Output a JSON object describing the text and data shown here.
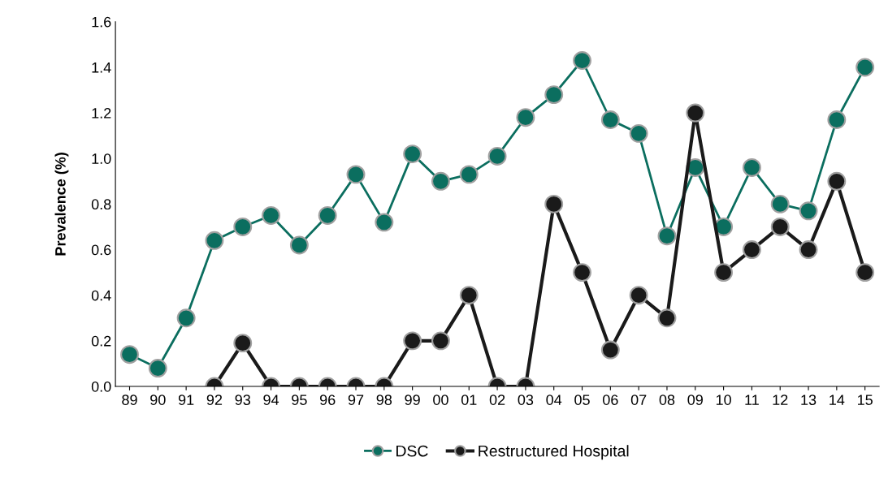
{
  "chart_data": {
    "type": "line",
    "ylabel": "Prevalence (%)",
    "categories": [
      "89",
      "90",
      "91",
      "92",
      "93",
      "94",
      "95",
      "96",
      "97",
      "98",
      "99",
      "00",
      "01",
      "02",
      "03",
      "04",
      "05",
      "06",
      "07",
      "08",
      "09",
      "10",
      "11",
      "12",
      "13",
      "14",
      "15"
    ],
    "series": [
      {
        "name": "DSC",
        "color": "#0b6e5f",
        "values": [
          0.14,
          0.08,
          0.3,
          0.64,
          0.7,
          0.75,
          0.62,
          0.75,
          0.93,
          0.72,
          1.02,
          0.9,
          0.93,
          1.01,
          1.18,
          1.28,
          1.43,
          1.17,
          1.11,
          0.66,
          0.96,
          0.7,
          0.96,
          0.8,
          0.77,
          1.17,
          1.4
        ]
      },
      {
        "name": "Restructured Hospital",
        "color": "#1a1a1a",
        "values": [
          null,
          null,
          null,
          0,
          0.19,
          0,
          0,
          0,
          0,
          0,
          0.2,
          0.2,
          0.4,
          0,
          0,
          0.8,
          0.5,
          0.16,
          0.4,
          0.3,
          1.2,
          0.5,
          0.6,
          0.7,
          0.6,
          0.9,
          0.5
        ]
      }
    ],
    "ylim": [
      0,
      1.6
    ],
    "yticks": [
      {
        "value": 0,
        "label": "0.0"
      },
      {
        "value": 0.2,
        "label": "0.2"
      },
      {
        "value": 0.4,
        "label": "0.4"
      },
      {
        "value": 0.6,
        "label": "0.6"
      },
      {
        "value": 0.8,
        "label": "0.8"
      },
      {
        "value": 1.0,
        "label": "1.0"
      },
      {
        "value": 1.2,
        "label": "1.2"
      },
      {
        "value": 1.4,
        "label": "1.4"
      },
      {
        "value": 1.6,
        "label": "1.6"
      }
    ],
    "grid": false,
    "legend": "bottom",
    "marker": "circle",
    "line_style": "solid"
  }
}
